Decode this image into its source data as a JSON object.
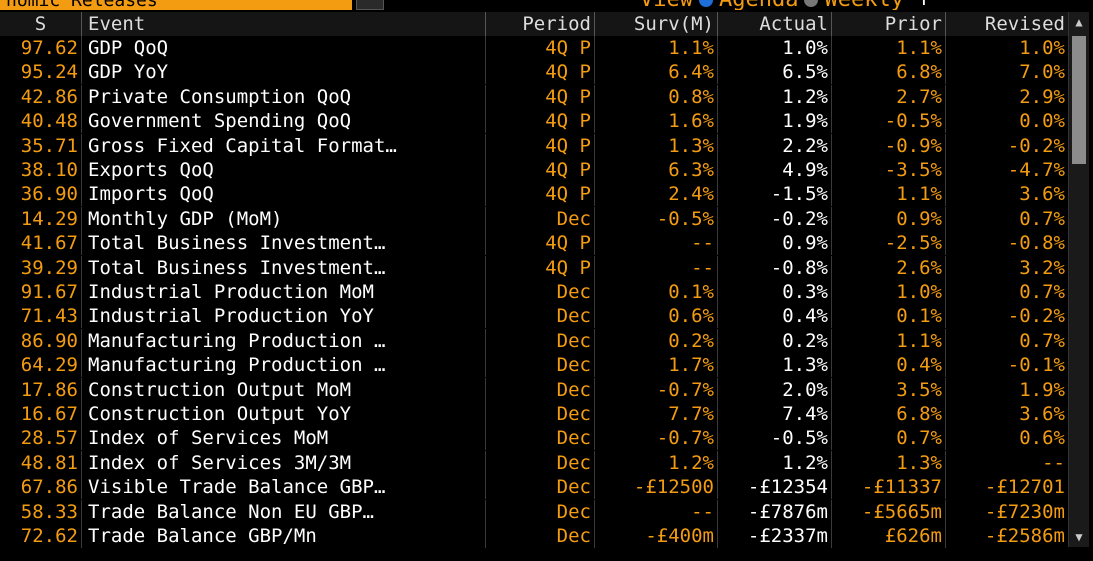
{
  "header": {
    "title": "nomic Releases",
    "view_label": "View",
    "agenda_label": "Agenda",
    "weekly_label": "Weekly",
    "plus_label": "+"
  },
  "columns": {
    "s": "S",
    "event": "Event",
    "period": "Period",
    "surv": "Surv(M)",
    "actual": "Actual",
    "prior": "Prior",
    "revised": "Revised"
  },
  "rows": [
    {
      "s": "97.62",
      "event": "GDP QoQ",
      "period": "4Q P",
      "surv": "1.1%",
      "actual": "1.0%",
      "prior": "1.1%",
      "revised": "1.0%"
    },
    {
      "s": "95.24",
      "event": "GDP YoY",
      "period": "4Q P",
      "surv": "6.4%",
      "actual": "6.5%",
      "prior": "6.8%",
      "revised": "7.0%"
    },
    {
      "s": "42.86",
      "event": "Private Consumption QoQ",
      "period": "4Q P",
      "surv": "0.8%",
      "actual": "1.2%",
      "prior": "2.7%",
      "revised": "2.9%"
    },
    {
      "s": "40.48",
      "event": "Government Spending QoQ",
      "period": "4Q P",
      "surv": "1.6%",
      "actual": "1.9%",
      "prior": "-0.5%",
      "revised": "0.0%"
    },
    {
      "s": "35.71",
      "event": "Gross Fixed Capital Format…",
      "period": "4Q P",
      "surv": "1.3%",
      "actual": "2.2%",
      "prior": "-0.9%",
      "revised": "-0.2%"
    },
    {
      "s": "38.10",
      "event": "Exports QoQ",
      "period": "4Q P",
      "surv": "6.3%",
      "actual": "4.9%",
      "prior": "-3.5%",
      "revised": "-4.7%"
    },
    {
      "s": "36.90",
      "event": "Imports QoQ",
      "period": "4Q P",
      "surv": "2.4%",
      "actual": "-1.5%",
      "prior": "1.1%",
      "revised": "3.6%"
    },
    {
      "s": "14.29",
      "event": "Monthly GDP (MoM)",
      "period": "Dec",
      "surv": "-0.5%",
      "actual": "-0.2%",
      "prior": "0.9%",
      "revised": "0.7%"
    },
    {
      "s": "41.67",
      "event": "Total Business Investment…",
      "period": "4Q P",
      "surv": "--",
      "actual": "0.9%",
      "prior": "-2.5%",
      "revised": "-0.8%"
    },
    {
      "s": "39.29",
      "event": "Total Business Investment…",
      "period": "4Q P",
      "surv": "--",
      "actual": "-0.8%",
      "prior": "2.6%",
      "revised": "3.2%"
    },
    {
      "s": "91.67",
      "event": "Industrial Production MoM",
      "period": "Dec",
      "surv": "0.1%",
      "actual": "0.3%",
      "prior": "1.0%",
      "revised": "0.7%"
    },
    {
      "s": "71.43",
      "event": "Industrial Production YoY",
      "period": "Dec",
      "surv": "0.6%",
      "actual": "0.4%",
      "prior": "0.1%",
      "revised": "-0.2%"
    },
    {
      "s": "86.90",
      "event": "Manufacturing Production …",
      "period": "Dec",
      "surv": "0.2%",
      "actual": "0.2%",
      "prior": "1.1%",
      "revised": "0.7%"
    },
    {
      "s": "64.29",
      "event": "Manufacturing Production …",
      "period": "Dec",
      "surv": "1.7%",
      "actual": "1.3%",
      "prior": "0.4%",
      "revised": "-0.1%"
    },
    {
      "s": "17.86",
      "event": "Construction Output MoM",
      "period": "Dec",
      "surv": "-0.7%",
      "actual": "2.0%",
      "prior": "3.5%",
      "revised": "1.9%"
    },
    {
      "s": "16.67",
      "event": "Construction Output YoY",
      "period": "Dec",
      "surv": "7.7%",
      "actual": "7.4%",
      "prior": "6.8%",
      "revised": "3.6%"
    },
    {
      "s": "28.57",
      "event": "Index of Services MoM",
      "period": "Dec",
      "surv": "-0.7%",
      "actual": "-0.5%",
      "prior": "0.7%",
      "revised": "0.6%"
    },
    {
      "s": "48.81",
      "event": "Index of Services 3M/3M",
      "period": "Dec",
      "surv": "1.2%",
      "actual": "1.2%",
      "prior": "1.3%",
      "revised": "--"
    },
    {
      "s": "67.86",
      "event": "Visible Trade Balance GBP…",
      "period": "Dec",
      "surv": "-£12500",
      "actual": "-£12354",
      "prior": "-£11337",
      "revised": "-£12701"
    },
    {
      "s": "58.33",
      "event": "Trade Balance Non EU GBP…",
      "period": "Dec",
      "surv": "--",
      "actual": "-£7876m",
      "prior": "-£5665m",
      "revised": "-£7230m"
    },
    {
      "s": "72.62",
      "event": "Trade Balance GBP/Mn",
      "period": "Dec",
      "surv": "-£400m",
      "actual": "-£2337m",
      "prior": "£626m",
      "revised": "-£2586m"
    }
  ],
  "scrollbar": {
    "up_glyph": "▲",
    "down_glyph": "▼"
  },
  "colors": {
    "accent": "#f39c12",
    "text": "#ffffff",
    "background": "#000000",
    "radio_on": "#1e6fd9"
  }
}
